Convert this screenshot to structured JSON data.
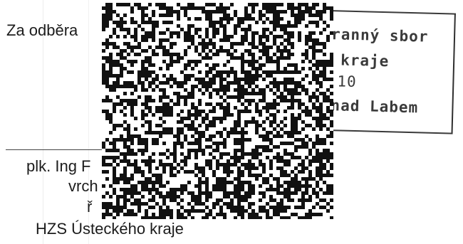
{
  "document": {
    "greeting_fragment": "Za odběra",
    "signatory_fragment": "plk. Ing F",
    "title_fragment": "vrch",
    "role_fragment": "ř",
    "organization": "HZS Ústeckého kraje"
  },
  "stamp": {
    "line1": "ranný sbor",
    "line2": "kraje",
    "line3": "10",
    "line4": "nad Labem"
  },
  "colors": {
    "paper": "#ffffff",
    "ink": "#1c1c1c",
    "stamp_ink": "#3a3a3a",
    "redaction_dark": "#111111",
    "redaction_light": "#ffffff"
  }
}
